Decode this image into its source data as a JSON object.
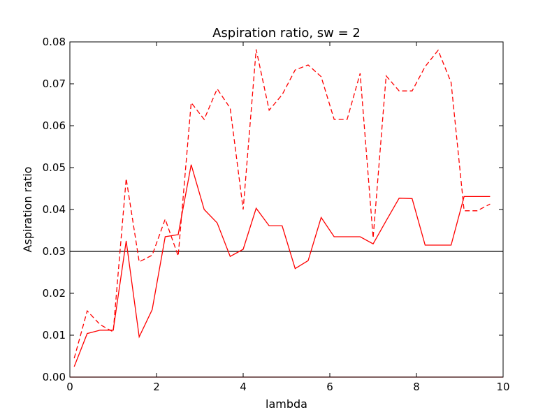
{
  "chart_data": {
    "type": "line",
    "title": "Aspiration ratio, sw = 2",
    "xlabel": "lambda",
    "ylabel": "Aspiration ratio",
    "xlim": [
      0,
      10
    ],
    "ylim": [
      0,
      0.08
    ],
    "xticks": [
      "0",
      "2",
      "4",
      "6",
      "8",
      "10"
    ],
    "yticks": [
      "0.00",
      "0.01",
      "0.02",
      "0.03",
      "0.04",
      "0.05",
      "0.06",
      "0.07",
      "0.08"
    ],
    "grid": false,
    "reference_lines": [
      {
        "y": 0.03,
        "color": "#000000",
        "style": "solid"
      },
      {
        "y": 0.0,
        "color": "#ff0000",
        "style": "solid"
      }
    ],
    "series": [
      {
        "color": "#ff0000",
        "style": "solid",
        "x": [
          0.1,
          0.4,
          0.7,
          1.0,
          1.3,
          1.6,
          1.9,
          2.2,
          2.5,
          2.8,
          3.1,
          3.4,
          3.7,
          4.0,
          4.3,
          4.6,
          4.9,
          5.2,
          5.5,
          5.8,
          6.1,
          6.4,
          6.7,
          7.0,
          7.3,
          7.6,
          7.9,
          8.2,
          8.5,
          8.8,
          9.1,
          9.4,
          9.7
        ],
        "y": [
          0.0025,
          0.0104,
          0.0112,
          0.0112,
          0.0325,
          0.0096,
          0.0161,
          0.0335,
          0.034,
          0.0507,
          0.04,
          0.0368,
          0.0288,
          0.0305,
          0.0403,
          0.0361,
          0.0361,
          0.0259,
          0.0278,
          0.0381,
          0.0335,
          0.0335,
          0.0335,
          0.0318,
          0.0373,
          0.0427,
          0.0426,
          0.0315,
          0.0315,
          0.0315,
          0.0431,
          0.0431,
          0.0431
        ]
      },
      {
        "color": "#ff0000",
        "style": "dashed",
        "x": [
          0.1,
          0.4,
          0.7,
          1.0,
          1.3,
          1.6,
          1.9,
          2.2,
          2.5,
          2.8,
          3.1,
          3.4,
          3.7,
          4.0,
          4.3,
          4.6,
          4.9,
          5.2,
          5.5,
          5.8,
          6.1,
          6.4,
          6.7,
          7.0,
          7.3,
          7.6,
          7.9,
          8.2,
          8.5,
          8.8,
          9.1,
          9.4,
          9.7
        ],
        "y": [
          0.0045,
          0.0158,
          0.0125,
          0.0108,
          0.0474,
          0.0275,
          0.0291,
          0.0377,
          0.0289,
          0.0655,
          0.0615,
          0.0688,
          0.0642,
          0.04,
          0.0782,
          0.0637,
          0.0674,
          0.0733,
          0.0745,
          0.0717,
          0.0615,
          0.0615,
          0.0725,
          0.0332,
          0.0719,
          0.0683,
          0.0683,
          0.0741,
          0.078,
          0.0703,
          0.0397,
          0.0397,
          0.0413
        ]
      }
    ]
  }
}
